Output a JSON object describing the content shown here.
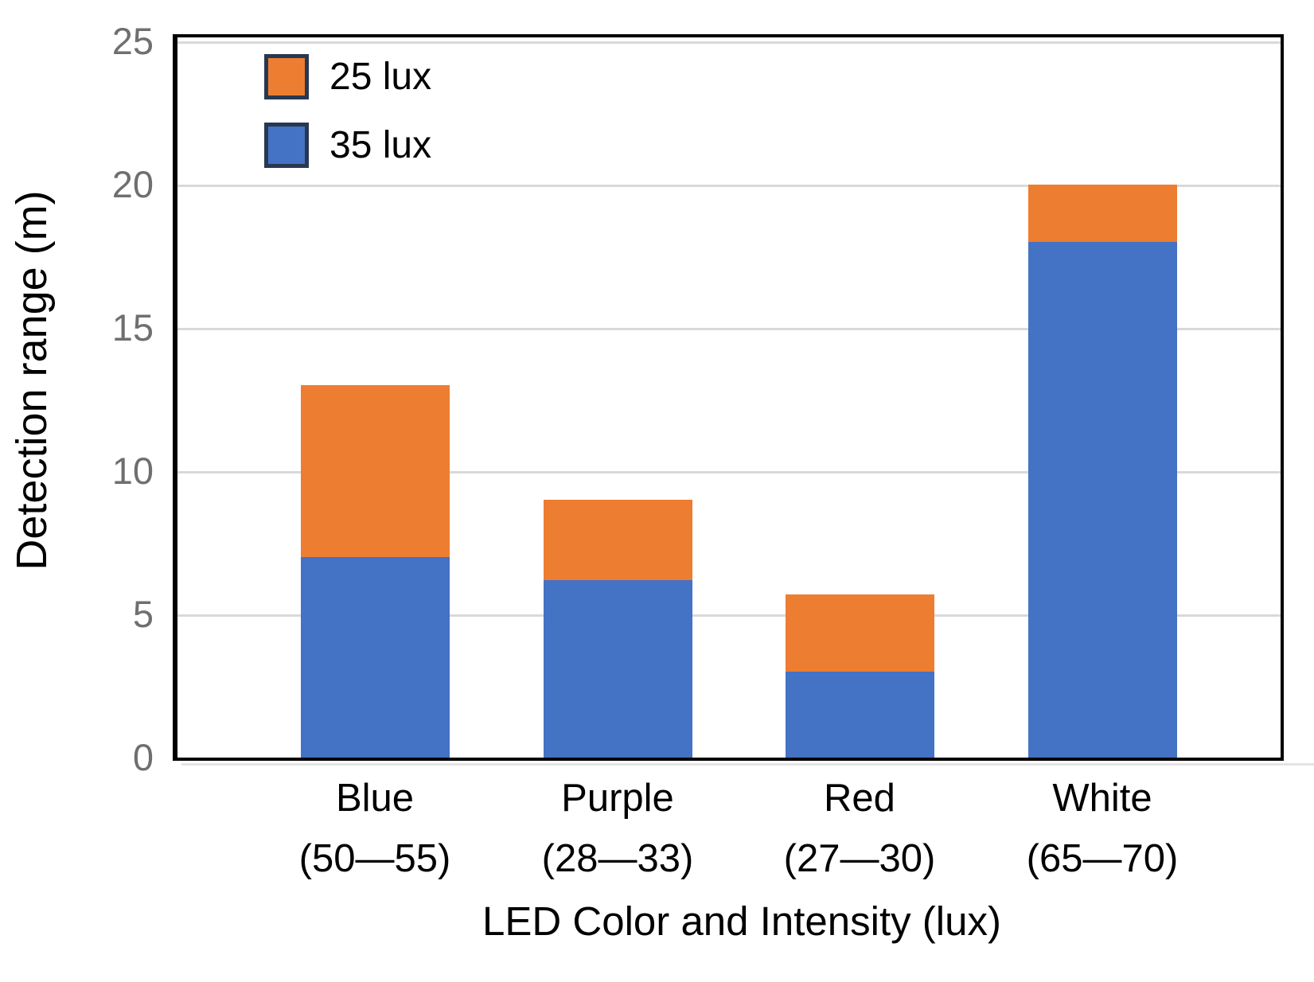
{
  "chart_data": {
    "type": "bar",
    "stacked": true,
    "title": "",
    "xlabel": "LED Color and Intensity (lux)",
    "ylabel": "Detection range (m)",
    "ylim": [
      0,
      25
    ],
    "y_ticks": [
      0,
      5,
      10,
      15,
      20,
      25
    ],
    "grid": "horizontal light-gray lines at each y tick, black plot border",
    "legend_position": "top-left inside plot area",
    "categories": [
      "Blue",
      "Purple",
      "Red",
      "White"
    ],
    "category_sublabels": [
      "(50—55)",
      "(28—33)",
      "(27—30)",
      "(65—70)"
    ],
    "series": [
      {
        "name": "35 lux",
        "color": "#4472C4",
        "stack_order": "bottom",
        "values": [
          7.0,
          6.2,
          3.0,
          18.0
        ]
      },
      {
        "name": "25 lux",
        "color": "#ED7D31",
        "stack_order": "top",
        "values": [
          6.0,
          2.8,
          2.7,
          2.0
        ]
      }
    ],
    "stack_totals": [
      13.0,
      9.0,
      5.7,
      20.0
    ]
  },
  "legend": {
    "items": [
      {
        "label": "25 lux",
        "color": "#ED7D31"
      },
      {
        "label": "35 lux",
        "color": "#4472C4"
      }
    ],
    "swatch_border_color": "#283850"
  },
  "axes": {
    "y_title": "Detection range (m)",
    "x_title": "LED Color and Intensity (lux)",
    "tick_label_color": "#6f6f6f",
    "gridline_color": "#d9d9d9",
    "axis_border_color": "#000000"
  }
}
